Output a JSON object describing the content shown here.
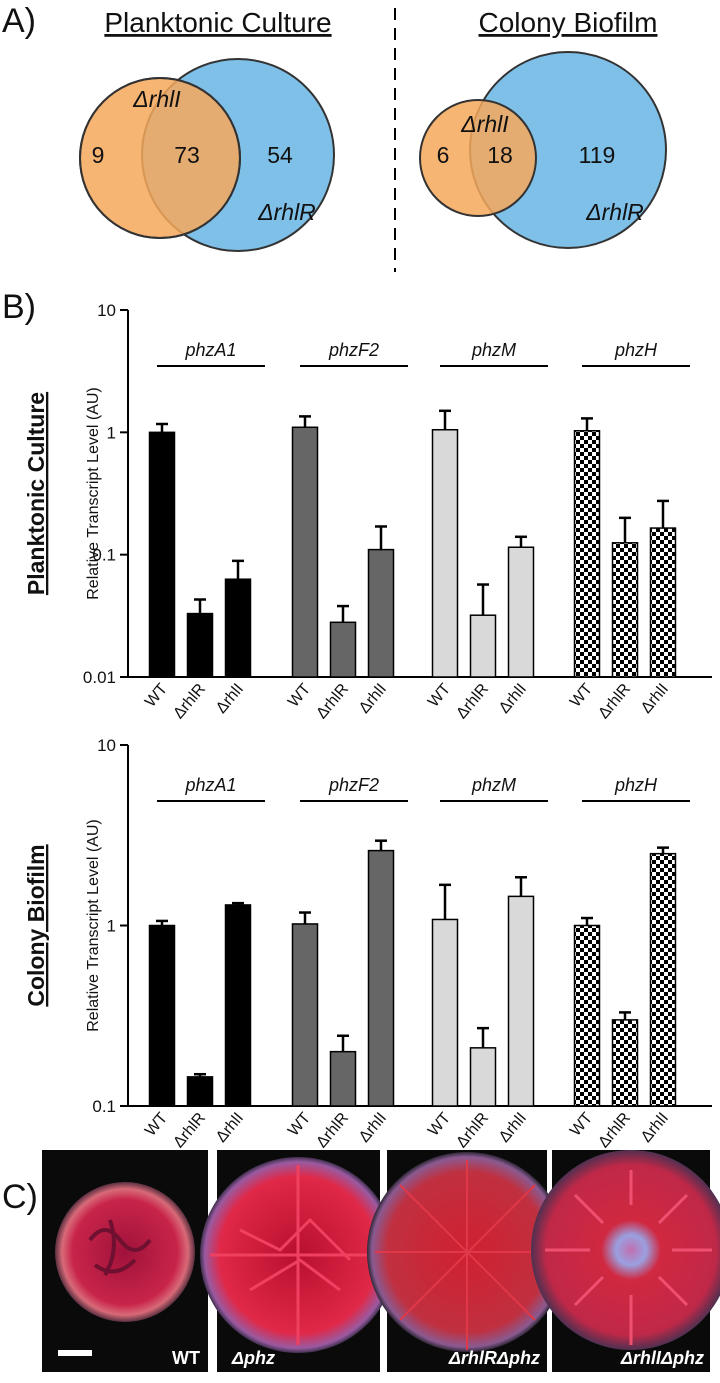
{
  "panel_labels": [
    "A)",
    "B)",
    "C)"
  ],
  "venn": [
    {
      "title": "Planktonic Culture",
      "left_label": "ΔrhlI",
      "right_label": "ΔrhlR",
      "only_left": 9,
      "both": 73,
      "only_right": 54
    },
    {
      "title": "Colony Biofilm",
      "left_label": "ΔrhlI",
      "right_label": "ΔrhlR",
      "only_left": 6,
      "both": 18,
      "only_right": 119
    }
  ],
  "chart_data": [
    {
      "type": "bar",
      "side_label": "Planktonic Culture",
      "ylabel": "Relative Transcript Level (AU)",
      "log_scale": true,
      "ylim": [
        0.01,
        10
      ],
      "yticks": [
        0.01,
        0.1,
        1,
        10
      ],
      "categories": [
        "WT",
        "ΔrhlR",
        "ΔrhlI"
      ],
      "series": [
        {
          "name": "phzA1",
          "color": "#000000",
          "values": [
            1.0,
            0.033,
            0.063
          ],
          "errors": [
            0.17,
            0.01,
            0.026
          ]
        },
        {
          "name": "phzF2",
          "color": "#666666",
          "values": [
            1.1,
            0.028,
            0.11
          ],
          "errors": [
            0.25,
            0.01,
            0.06
          ]
        },
        {
          "name": "phzM",
          "color": "#d9d9d9",
          "values": [
            1.05,
            0.032,
            0.115
          ],
          "errors": [
            0.45,
            0.025,
            0.025
          ]
        },
        {
          "name": "phzH",
          "color": "#000000",
          "pattern": "checker",
          "values": [
            1.03,
            0.125,
            0.165
          ],
          "errors": [
            0.27,
            0.075,
            0.11
          ]
        }
      ]
    },
    {
      "type": "bar",
      "side_label": "Colony Biofilm",
      "ylabel": "Relative Transcript Level (AU)",
      "log_scale": true,
      "ylim": [
        0.1,
        10
      ],
      "yticks": [
        0.1,
        1,
        10
      ],
      "categories": [
        "WT",
        "ΔrhlR",
        "ΔrhlI"
      ],
      "series": [
        {
          "name": "phzA1",
          "color": "#000000",
          "values": [
            1.0,
            0.145,
            1.3
          ],
          "errors": [
            0.06,
            0.005,
            0.03
          ]
        },
        {
          "name": "phzF2",
          "color": "#666666",
          "values": [
            1.02,
            0.2,
            2.6
          ],
          "errors": [
            0.16,
            0.045,
            0.35
          ]
        },
        {
          "name": "phzM",
          "color": "#d9d9d9",
          "values": [
            1.08,
            0.21,
            1.45
          ],
          "errors": [
            0.6,
            0.06,
            0.4
          ]
        },
        {
          "name": "phzH",
          "color": "#000000",
          "pattern": "checker",
          "values": [
            1.0,
            0.3,
            2.5
          ],
          "errors": [
            0.1,
            0.03,
            0.2
          ]
        }
      ]
    }
  ],
  "photos": [
    "WT",
    "Δphz",
    "ΔrhlRΔphz",
    "ΔrhlIΔphz"
  ]
}
